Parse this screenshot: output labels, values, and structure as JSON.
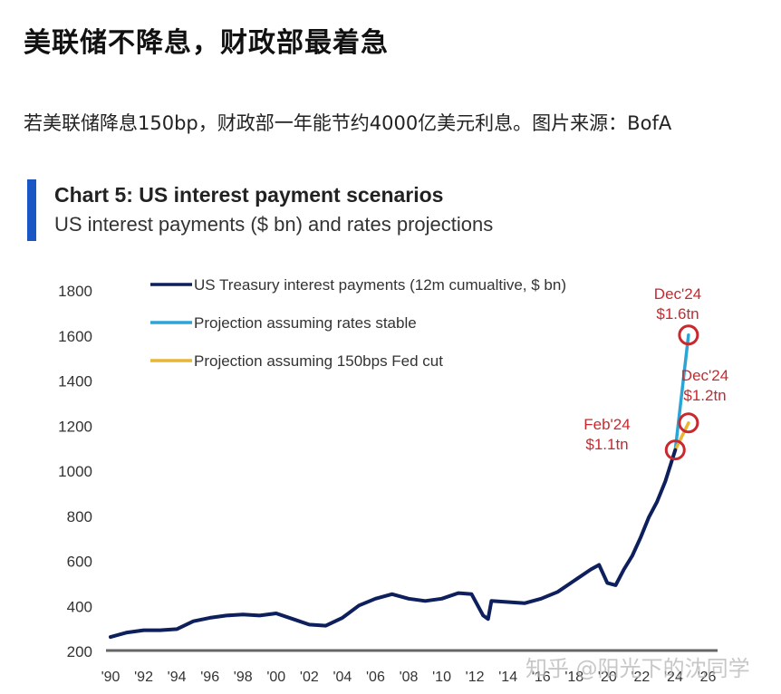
{
  "article": {
    "headline": "美联储不降息，财政部最着急",
    "description": "若美联储降息150bp，财政部一年能节约4000亿美元利息。图片来源：BofA"
  },
  "watermark": "知乎 @阳光下的沈同学",
  "chart_header": {
    "title": "Chart 5: US interest payment scenarios",
    "subtitle": "US interest payments ($ bn) and rates projections",
    "accent_color": "#1a56c4"
  },
  "chart_data": {
    "type": "line",
    "title": "Chart 5: US interest payment scenarios",
    "subtitle": "US interest payments ($ bn) and rates projections",
    "xlabel": "",
    "ylabel": "$ bn",
    "ylim": [
      200,
      1800
    ],
    "xlim": [
      1990,
      2026
    ],
    "grid": false,
    "legend_position": "top-left",
    "y_ticks": [
      200,
      400,
      600,
      800,
      1000,
      1200,
      1400,
      1600,
      1800
    ],
    "x_ticks": [
      "'90",
      "'92",
      "'94",
      "'96",
      "'98",
      "'00",
      "'02",
      "'04",
      "'06",
      "'08",
      "'10",
      "'12",
      "'14",
      "'16",
      "'18",
      "'20",
      "'22",
      "'24",
      "'26"
    ],
    "series": [
      {
        "name": "US Treasury interest payments (12m cumualtive, $ bn)",
        "color": "#0d1f5c",
        "x": [
          1990,
          1991,
          1992,
          1993,
          1994,
          1995,
          1996,
          1997,
          1998,
          1999,
          2000,
          2001,
          2002,
          2003,
          2004,
          2005,
          2006,
          2007,
          2008,
          2009,
          2010,
          2011,
          2011.8,
          2012.5,
          2012.8,
          2013,
          2014,
          2015,
          2016,
          2017,
          2018,
          2019,
          2019.5,
          2020,
          2020.5,
          2021,
          2021.5,
          2022,
          2022.5,
          2023,
          2023.5,
          2024.1
        ],
        "values": [
          260,
          280,
          290,
          290,
          295,
          330,
          345,
          355,
          360,
          355,
          365,
          340,
          315,
          310,
          345,
          400,
          430,
          450,
          430,
          420,
          430,
          455,
          450,
          355,
          340,
          420,
          415,
          410,
          430,
          460,
          510,
          560,
          580,
          500,
          490,
          560,
          620,
          700,
          790,
          860,
          950,
          1090
        ]
      },
      {
        "name": "Projection assuming rates stable",
        "color": "#2aa5d6",
        "x": [
          2024.1,
          2024.9
        ],
        "values": [
          1090,
          1600
        ]
      },
      {
        "name": "Projection assuming 150bps Fed cut",
        "color": "#e8b534",
        "x": [
          2024.1,
          2024.9
        ],
        "values": [
          1090,
          1210
        ]
      }
    ],
    "annotations": [
      {
        "label": "Feb'24",
        "value_label": "$1.1tn",
        "x": 2024.1,
        "y": 1090,
        "color": "#c8282e"
      },
      {
        "label": "Dec'24",
        "value_label": "$1.6tn",
        "x": 2024.9,
        "y": 1600,
        "color": "#c8282e"
      },
      {
        "label": "Dec'24",
        "value_label": "$1.2tn",
        "x": 2024.9,
        "y": 1210,
        "color": "#c8282e"
      }
    ]
  }
}
